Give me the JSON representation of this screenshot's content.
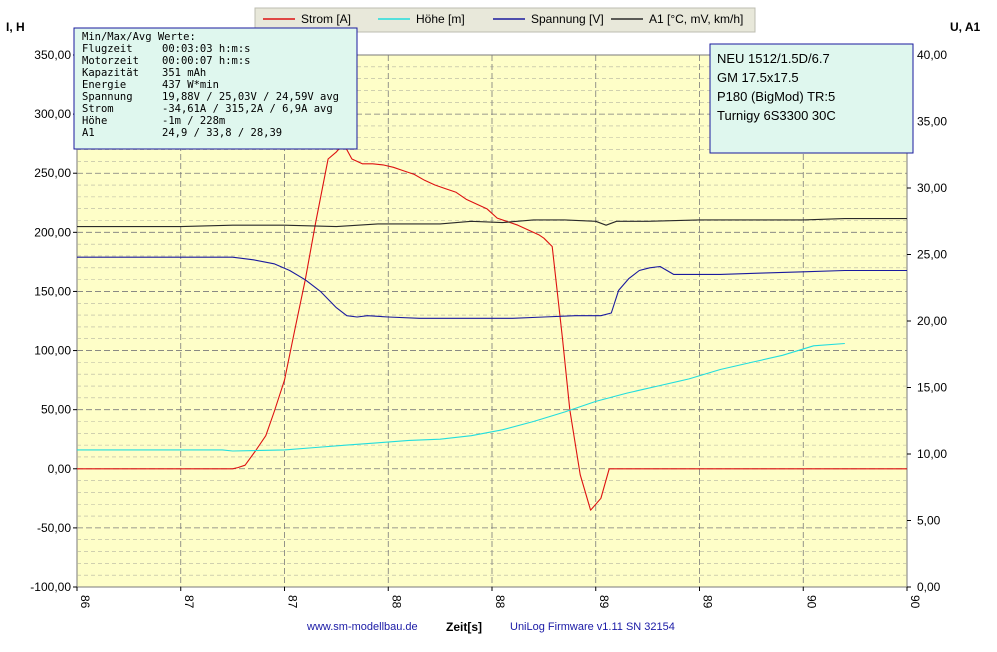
{
  "chart_data": {
    "type": "line",
    "title": "",
    "xlabel": "Zeit[s]",
    "ylabel_left": "I, H",
    "ylabel_right": "U, A1",
    "x_ticks": [
      "86",
      "87",
      "87",
      "88",
      "88",
      "89",
      "89",
      "90",
      "90"
    ],
    "x_range": [
      0,
      8
    ],
    "ylim_left": [
      -100,
      350
    ],
    "ylim_right": [
      0,
      40
    ],
    "y_ticks_left": [
      "350,00",
      "300,00",
      "250,00",
      "200,00",
      "150,00",
      "100,00",
      "50,00",
      "0,00",
      "-50,00",
      "-100,00"
    ],
    "y_ticks_right": [
      "40,00",
      "35,00",
      "30,00",
      "25,00",
      "20,00",
      "15,00",
      "10,00",
      "5,00",
      "0,00"
    ],
    "grid": true,
    "legend_position": "top",
    "series": [
      {
        "name": "Strom [A]",
        "color": "#dd1111",
        "axis": "left",
        "points": [
          [
            0,
            0
          ],
          [
            1.0,
            0
          ],
          [
            1.5,
            0
          ],
          [
            1.55,
            1
          ],
          [
            1.62,
            3
          ],
          [
            1.72,
            15
          ],
          [
            1.82,
            28
          ],
          [
            1.9,
            48
          ],
          [
            2.0,
            75
          ],
          [
            2.1,
            118
          ],
          [
            2.2,
            160
          ],
          [
            2.3,
            208
          ],
          [
            2.42,
            262
          ],
          [
            2.5,
            268
          ],
          [
            2.57,
            275
          ],
          [
            2.65,
            262
          ],
          [
            2.75,
            258
          ],
          [
            2.85,
            258
          ],
          [
            2.95,
            257
          ],
          [
            3.05,
            255
          ],
          [
            3.15,
            252
          ],
          [
            3.25,
            249
          ],
          [
            3.35,
            244
          ],
          [
            3.45,
            240
          ],
          [
            3.55,
            237
          ],
          [
            3.65,
            234
          ],
          [
            3.75,
            228
          ],
          [
            3.85,
            224
          ],
          [
            3.95,
            220
          ],
          [
            4.05,
            212
          ],
          [
            4.15,
            209
          ],
          [
            4.25,
            206
          ],
          [
            4.35,
            202
          ],
          [
            4.45,
            198
          ],
          [
            4.5,
            195
          ],
          [
            4.58,
            188
          ],
          [
            4.68,
            110
          ],
          [
            4.75,
            50
          ],
          [
            4.85,
            -5
          ],
          [
            4.95,
            -35
          ],
          [
            5.05,
            -25
          ],
          [
            5.13,
            0
          ],
          [
            5.5,
            0
          ],
          [
            6,
            0
          ],
          [
            7,
            0
          ],
          [
            8,
            0
          ]
        ]
      },
      {
        "name": "Höhe [m]",
        "color": "#22dddd",
        "axis": "left",
        "points": [
          [
            0,
            16
          ],
          [
            1,
            16
          ],
          [
            1.4,
            16
          ],
          [
            1.5,
            15
          ],
          [
            2.0,
            16
          ],
          [
            2.3,
            18
          ],
          [
            2.6,
            20
          ],
          [
            2.9,
            22
          ],
          [
            3.2,
            24
          ],
          [
            3.5,
            25
          ],
          [
            3.8,
            28
          ],
          [
            4.1,
            33
          ],
          [
            4.4,
            40
          ],
          [
            4.7,
            48
          ],
          [
            5.0,
            57
          ],
          [
            5.3,
            64
          ],
          [
            5.6,
            70
          ],
          [
            5.9,
            76
          ],
          [
            6.2,
            84
          ],
          [
            6.5,
            90
          ],
          [
            6.8,
            96
          ],
          [
            7.1,
            104
          ],
          [
            7.4,
            106
          ]
        ]
      },
      {
        "name": "Spannung [V]",
        "color": "#1a1a9e",
        "axis": "right",
        "points": [
          [
            0,
            24.8
          ],
          [
            0.5,
            24.8
          ],
          [
            1.0,
            24.8
          ],
          [
            1.5,
            24.8
          ],
          [
            1.7,
            24.6
          ],
          [
            1.9,
            24.3
          ],
          [
            2.05,
            23.8
          ],
          [
            2.2,
            23.1
          ],
          [
            2.35,
            22.2
          ],
          [
            2.5,
            21.0
          ],
          [
            2.6,
            20.4
          ],
          [
            2.7,
            20.3
          ],
          [
            2.8,
            20.4
          ],
          [
            3.0,
            20.3
          ],
          [
            3.3,
            20.2
          ],
          [
            3.6,
            20.2
          ],
          [
            3.9,
            20.2
          ],
          [
            4.2,
            20.2
          ],
          [
            4.5,
            20.3
          ],
          [
            4.8,
            20.4
          ],
          [
            5.05,
            20.4
          ],
          [
            5.15,
            20.6
          ],
          [
            5.22,
            22.3
          ],
          [
            5.32,
            23.2
          ],
          [
            5.42,
            23.8
          ],
          [
            5.52,
            24.0
          ],
          [
            5.62,
            24.1
          ],
          [
            5.75,
            23.5
          ],
          [
            5.9,
            23.5
          ],
          [
            6.2,
            23.5
          ],
          [
            6.6,
            23.6
          ],
          [
            7.0,
            23.7
          ],
          [
            7.4,
            23.8
          ],
          [
            8,
            23.8
          ]
        ]
      },
      {
        "name": "A1 [°C, mV, km/h]",
        "color": "#2a2a2a",
        "axis": "right",
        "points": [
          [
            0,
            27.1
          ],
          [
            0.5,
            27.1
          ],
          [
            1.0,
            27.1
          ],
          [
            1.5,
            27.2
          ],
          [
            2.0,
            27.2
          ],
          [
            2.5,
            27.1
          ],
          [
            2.9,
            27.3
          ],
          [
            3.2,
            27.3
          ],
          [
            3.5,
            27.3
          ],
          [
            3.8,
            27.5
          ],
          [
            4.1,
            27.4
          ],
          [
            4.4,
            27.6
          ],
          [
            4.7,
            27.6
          ],
          [
            5.0,
            27.5
          ],
          [
            5.1,
            27.2
          ],
          [
            5.2,
            27.5
          ],
          [
            5.5,
            27.5
          ],
          [
            6.0,
            27.6
          ],
          [
            6.5,
            27.6
          ],
          [
            7.0,
            27.6
          ],
          [
            7.4,
            27.7
          ],
          [
            8,
            27.7
          ]
        ]
      }
    ],
    "stats_box": {
      "heading": "Min/Max/Avg Werte:",
      "rows": [
        {
          "label": "Flugzeit",
          "value": "00:03:03 h:m:s"
        },
        {
          "label": "Motorzeit",
          "value": "00:00:07 h:m:s"
        },
        {
          "label": "Kapazität",
          "value": "351 mAh"
        },
        {
          "label": "Energie",
          "value": "437 W*min"
        },
        {
          "label": "Spannung",
          "value": "19,88V / 25,03V / 24,59V avg"
        },
        {
          "label": "Strom",
          "value": "-34,61A / 315,2A / 6,9A avg"
        },
        {
          "label": "Höhe",
          "value": "-1m / 228m"
        },
        {
          "label": "A1",
          "value": "24,9 / 33,8 / 28,39"
        }
      ]
    },
    "info_box": {
      "lines": [
        "NEU 1512/1.5D/6.7",
        "GM 17.5x17.5",
        "P180  (BigMod) TR:5",
        "Turnigy 6S3300  30C"
      ]
    },
    "footer": {
      "website": "www.sm-modellbau.de",
      "xlabel": "Zeit[s]",
      "firmware": "UniLog  Firmware v1.11 SN 32154"
    },
    "colors": {
      "plot_bg": "#fefec8",
      "grid_major": "#7a7a7a",
      "grid_minor": "#b5b5a0",
      "box_border": "#1a1a9e",
      "box_fill": "#dff7ee"
    }
  }
}
